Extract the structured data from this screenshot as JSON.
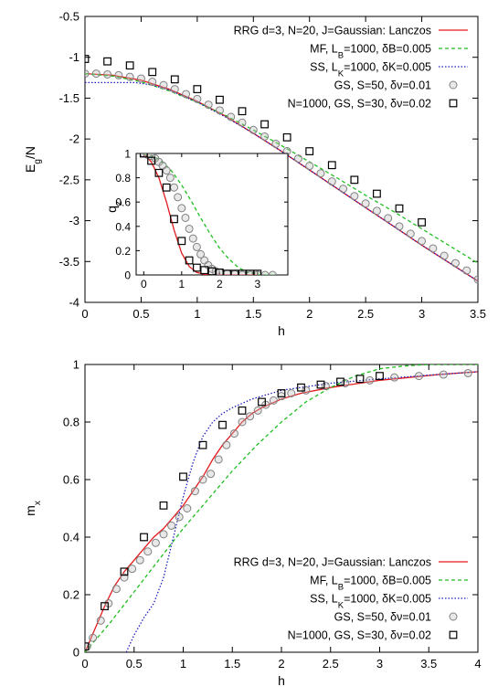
{
  "chart_data": [
    {
      "id": "energy",
      "type": "line",
      "xlabel": "h",
      "ylabel_main": "E",
      "ylabel_sub": "g",
      "ylabel_tail": "/N",
      "xlim": [
        0,
        3.5
      ],
      "ylim": [
        -4,
        -0.5
      ],
      "xticks": [
        "0",
        "0.5",
        "1",
        "1.5",
        "2",
        "2.5",
        "3",
        "3.5"
      ],
      "yticks": [
        "-4",
        "-3.5",
        "-3",
        "-2.5",
        "-2",
        "-1.5",
        "-1",
        "-0.5"
      ],
      "legend_position": "top-right",
      "series": [
        {
          "name": "RRG d=3, N=20, J=Gaussian: Lanczos",
          "kind": "line",
          "color": "#e41a1c",
          "dash": "",
          "x": [
            0,
            0.25,
            0.5,
            0.75,
            1.0,
            1.25,
            1.5,
            1.75,
            2.0,
            2.25,
            2.5,
            2.75,
            3.0,
            3.25,
            3.5
          ],
          "y": [
            -1.2,
            -1.22,
            -1.28,
            -1.39,
            -1.54,
            -1.72,
            -1.93,
            -2.15,
            -2.38,
            -2.61,
            -2.84,
            -3.07,
            -3.3,
            -3.52,
            -3.74
          ]
        },
        {
          "name": "MF, L_B=1000, δB=0.005",
          "kind": "line",
          "color": "#1fbf1f",
          "dash": "4,3",
          "x": [
            0,
            0.25,
            0.5,
            0.75,
            1.0,
            1.25,
            1.5,
            1.75,
            2.0,
            2.25,
            2.5,
            2.75,
            3.0,
            3.25,
            3.5
          ],
          "y": [
            -1.2,
            -1.23,
            -1.3,
            -1.41,
            -1.55,
            -1.71,
            -1.89,
            -2.08,
            -2.28,
            -2.48,
            -2.69,
            -2.89,
            -3.1,
            -3.31,
            -3.52
          ]
        },
        {
          "name": "SS, L_K=1000, δK=0.005",
          "kind": "line",
          "color": "#2020c0",
          "dash": "1.5,2",
          "x": [
            0,
            0.3,
            0.45,
            0.6,
            0.75,
            1.0,
            1.25,
            1.5,
            1.75,
            2.0,
            2.25,
            2.5,
            2.75,
            3.0,
            3.25,
            3.5
          ],
          "y": [
            -1.31,
            -1.31,
            -1.31,
            -1.34,
            -1.4,
            -1.55,
            -1.73,
            -1.93,
            -2.15,
            -2.38,
            -2.61,
            -2.84,
            -3.07,
            -3.3,
            -3.52,
            -3.74
          ]
        },
        {
          "name": "GS, S=50, δν=0.01",
          "kind": "circle",
          "color": "#808080",
          "dash": "",
          "x": [
            0,
            0.1,
            0.2,
            0.3,
            0.4,
            0.5,
            0.6,
            0.7,
            0.8,
            0.9,
            1.0,
            1.1,
            1.2,
            1.3,
            1.4,
            1.5,
            1.6,
            1.7,
            1.8,
            1.9,
            2.0,
            2.1,
            2.2,
            2.3,
            2.4,
            2.5,
            2.6,
            2.7,
            2.8,
            2.9,
            3.0,
            3.1,
            3.2,
            3.3,
            3.4,
            3.5
          ],
          "y": [
            -1.2,
            -1.2,
            -1.21,
            -1.22,
            -1.24,
            -1.26,
            -1.3,
            -1.34,
            -1.39,
            -1.45,
            -1.51,
            -1.58,
            -1.65,
            -1.73,
            -1.8,
            -1.89,
            -1.97,
            -2.06,
            -2.15,
            -2.24,
            -2.33,
            -2.42,
            -2.52,
            -2.61,
            -2.7,
            -2.79,
            -2.88,
            -2.97,
            -3.07,
            -3.16,
            -3.25,
            -3.34,
            -3.43,
            -3.52,
            -3.61,
            -3.72
          ]
        },
        {
          "name": "N=1000, GS, S=30, δν=0.02",
          "kind": "square",
          "color": "#000000",
          "dash": "",
          "x": [
            0,
            0.2,
            0.4,
            0.6,
            0.8,
            1.0,
            1.2,
            1.4,
            1.6,
            1.8,
            2.0,
            2.2,
            2.4,
            2.6,
            2.8,
            3.0
          ],
          "y": [
            -1.02,
            -1.05,
            -1.1,
            -1.18,
            -1.27,
            -1.39,
            -1.52,
            -1.66,
            -1.82,
            -1.98,
            -2.15,
            -2.32,
            -2.5,
            -2.67,
            -2.85,
            -3.02
          ]
        }
      ],
      "inset": {
        "xlim": [
          -0.2,
          3.8
        ],
        "ylim": [
          0,
          1
        ],
        "xticks": [
          "0",
          "1",
          "2",
          "3"
        ],
        "yticks": [
          "0",
          "0.2",
          "0.4",
          "0.6",
          "0.8",
          "1"
        ],
        "ylabel_main": "q",
        "ylabel_sub": "z",
        "series": [
          {
            "kind": "line",
            "color": "#e41a1c",
            "dash": "",
            "x": [
              0,
              0.2,
              0.4,
              0.6,
              0.8,
              1.0,
              1.2,
              1.4,
              1.6,
              1.8,
              2.0,
              3.0
            ],
            "y": [
              1,
              0.93,
              0.8,
              0.6,
              0.37,
              0.18,
              0.07,
              0.02,
              0.005,
              0,
              0,
              0
            ]
          },
          {
            "kind": "line",
            "color": "#1fbf1f",
            "dash": "4,3",
            "x": [
              0,
              0.25,
              0.5,
              0.75,
              1.0,
              1.25,
              1.5,
              1.75,
              2.0,
              2.25,
              2.5,
              2.75,
              3.0,
              3.25,
              3.5
            ],
            "y": [
              1,
              0.98,
              0.93,
              0.85,
              0.74,
              0.61,
              0.47,
              0.34,
              0.22,
              0.13,
              0.06,
              0.02,
              0.005,
              0,
              0
            ]
          },
          {
            "kind": "circle",
            "color": "#808080",
            "dash": "",
            "x": [
              0,
              0.1,
              0.2,
              0.3,
              0.4,
              0.5,
              0.6,
              0.7,
              0.8,
              0.9,
              1.0,
              1.1,
              1.2,
              1.3,
              1.4,
              1.5,
              1.6,
              1.7,
              1.8,
              1.9,
              2.0,
              2.2,
              2.4,
              2.6,
              2.8,
              3.0,
              3.2,
              3.4
            ],
            "y": [
              1,
              0.99,
              0.98,
              0.96,
              0.93,
              0.9,
              0.86,
              0.8,
              0.72,
              0.64,
              0.55,
              0.47,
              0.38,
              0.3,
              0.23,
              0.17,
              0.12,
              0.08,
              0.05,
              0.03,
              0.02,
              0.01,
              0.005,
              0,
              0,
              0,
              0,
              0
            ]
          },
          {
            "kind": "square",
            "color": "#000000",
            "dash": "",
            "x": [
              0,
              0.2,
              0.4,
              0.6,
              0.8,
              1.0,
              1.2,
              1.4,
              1.6,
              1.8,
              2.0,
              2.2,
              2.4,
              2.6,
              2.8,
              3.0
            ],
            "y": [
              1,
              0.94,
              0.84,
              0.72,
              0.46,
              0.28,
              0.12,
              0.06,
              0.04,
              0.03,
              0.02,
              0.01,
              0.01,
              0.01,
              0.01,
              0.01
            ]
          }
        ]
      }
    },
    {
      "id": "magnetization",
      "type": "line",
      "xlabel": "h",
      "ylabel_main": "m",
      "ylabel_sub": "x",
      "ylabel_tail": "",
      "xlim": [
        0,
        4
      ],
      "ylim": [
        0,
        1
      ],
      "xticks": [
        "0",
        "0.5",
        "1",
        "1.5",
        "2",
        "2.5",
        "3",
        "3.5",
        "4"
      ],
      "yticks": [
        "0",
        "0.2",
        "0.4",
        "0.6",
        "0.8",
        "1"
      ],
      "legend_position": "bottom-right",
      "series": [
        {
          "name": "RRG d=3, N=20, J=Gaussian: Lanczos",
          "kind": "line",
          "color": "#e41a1c",
          "dash": "",
          "x": [
            0,
            0.1,
            0.2,
            0.3,
            0.4,
            0.5,
            0.6,
            0.7,
            0.8,
            0.9,
            1.0,
            1.1,
            1.2,
            1.3,
            1.4,
            1.5,
            1.6,
            1.7,
            1.8,
            2.0,
            2.2,
            2.5,
            2.8,
            3.0,
            3.3,
            3.6,
            4.0
          ],
          "y": [
            0,
            0.08,
            0.16,
            0.23,
            0.28,
            0.32,
            0.36,
            0.4,
            0.43,
            0.47,
            0.51,
            0.56,
            0.61,
            0.67,
            0.72,
            0.76,
            0.8,
            0.83,
            0.85,
            0.88,
            0.9,
            0.92,
            0.935,
            0.945,
            0.955,
            0.965,
            0.975
          ]
        },
        {
          "name": "MF, L_B=1000, δB=0.005",
          "kind": "line",
          "color": "#1fbf1f",
          "dash": "4,3",
          "x": [
            0,
            0.25,
            0.5,
            0.75,
            1.0,
            1.25,
            1.5,
            1.75,
            2.0,
            2.25,
            2.5,
            2.75,
            3.0,
            3.25,
            3.5,
            3.75,
            4.0
          ],
          "y": [
            0,
            0.1,
            0.21,
            0.32,
            0.43,
            0.53,
            0.63,
            0.72,
            0.8,
            0.87,
            0.92,
            0.96,
            0.985,
            0.995,
            1.0,
            1.0,
            1.0
          ]
        },
        {
          "name": "SS, L_K=1000, δK=0.005",
          "kind": "line",
          "color": "#2020c0",
          "dash": "1.5,2",
          "x": [
            0.42,
            0.5,
            0.6,
            0.7,
            0.8,
            0.9,
            1.0,
            1.1,
            1.2,
            1.3,
            1.4,
            1.5,
            1.7,
            2.0,
            2.5,
            3.0,
            3.5,
            4.0
          ],
          "y": [
            0.0,
            0.06,
            0.12,
            0.17,
            0.26,
            0.4,
            0.54,
            0.66,
            0.75,
            0.8,
            0.83,
            0.85,
            0.88,
            0.91,
            0.935,
            0.95,
            0.963,
            0.975
          ]
        },
        {
          "name": "GS, S=50, δν=0.01",
          "kind": "circle",
          "color": "#808080",
          "dash": "",
          "x": [
            0.02,
            0.08,
            0.16,
            0.24,
            0.32,
            0.4,
            0.48,
            0.56,
            0.64,
            0.72,
            0.8,
            0.88,
            0.96,
            1.04,
            1.12,
            1.2,
            1.28,
            1.36,
            1.44,
            1.52,
            1.6,
            1.68,
            1.76,
            1.84,
            1.92,
            2.0,
            2.1,
            2.25,
            2.45,
            2.65,
            2.9,
            3.15,
            3.4,
            3.65,
            3.9
          ],
          "y": [
            0.02,
            0.05,
            0.11,
            0.17,
            0.22,
            0.26,
            0.29,
            0.32,
            0.35,
            0.38,
            0.41,
            0.44,
            0.47,
            0.5,
            0.56,
            0.6,
            0.62,
            0.67,
            0.72,
            0.76,
            0.8,
            0.82,
            0.84,
            0.86,
            0.875,
            0.89,
            0.9,
            0.91,
            0.925,
            0.935,
            0.945,
            0.955,
            0.96,
            0.965,
            0.97
          ]
        },
        {
          "name": "N=1000, GS, S=30, δν=0.02",
          "kind": "square",
          "color": "#000000",
          "dash": "",
          "x": [
            0,
            0.2,
            0.4,
            0.6,
            0.8,
            1.0,
            1.2,
            1.4,
            1.6,
            1.8,
            2.0,
            2.2,
            2.4,
            2.6,
            2.8,
            3.0
          ],
          "y": [
            0.02,
            0.16,
            0.28,
            0.4,
            0.51,
            0.61,
            0.72,
            0.79,
            0.84,
            0.87,
            0.9,
            0.92,
            0.93,
            0.94,
            0.95,
            0.96
          ]
        }
      ]
    }
  ]
}
